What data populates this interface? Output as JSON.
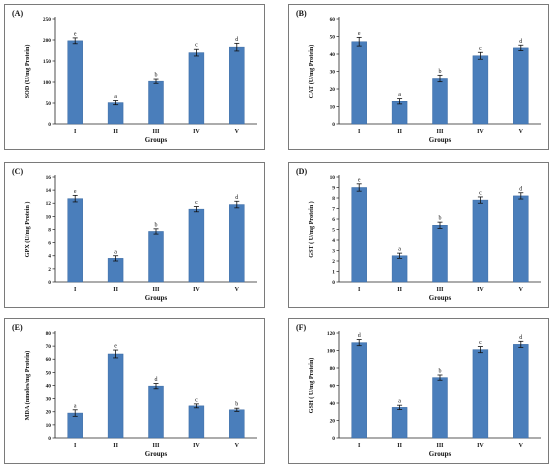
{
  "colors": {
    "bar": "#4a7ebb",
    "bar_edge": "#3a6aa3",
    "axis": "#222222",
    "frame": "#7a7a7a"
  },
  "chart_data": [
    {
      "type": "bar",
      "panel_label": "(A)",
      "categories": [
        "I",
        "II",
        "III",
        "IV",
        "V"
      ],
      "values": [
        198,
        51,
        102,
        170,
        183
      ],
      "errors": [
        7,
        5,
        5,
        8,
        9
      ],
      "letters": [
        "e",
        "a",
        "b",
        "c",
        "d"
      ],
      "xlabel": "Groups",
      "ylabel": "SOD (U/mg Protein)",
      "ylim": [
        0,
        250
      ],
      "yticks": [
        "0",
        "50",
        "100",
        "150",
        "200",
        "250"
      ]
    },
    {
      "type": "bar",
      "panel_label": "(B)",
      "categories": [
        "I",
        "II",
        "III",
        "IV",
        "V"
      ],
      "values": [
        47,
        13,
        26,
        39,
        43.5
      ],
      "errors": [
        2.5,
        1.5,
        1.8,
        2.0,
        1.5
      ],
      "letters": [
        "e",
        "a",
        "b",
        "c",
        "d"
      ],
      "xlabel": "Groups",
      "ylabel": "CAT (U/mg Protein)",
      "ylim": [
        0,
        60
      ],
      "yticks": [
        "0",
        "10",
        "20",
        "30",
        "40",
        "50",
        "60"
      ]
    },
    {
      "type": "bar",
      "panel_label": "(C)",
      "categories": [
        "I",
        "II",
        "III",
        "IV",
        "V"
      ],
      "values": [
        12.7,
        3.6,
        7.7,
        11.1,
        11.8
      ],
      "errors": [
        0.5,
        0.4,
        0.4,
        0.4,
        0.5
      ],
      "letters": [
        "e",
        "a",
        "b",
        "c",
        "d"
      ],
      "xlabel": "Groups",
      "ylabel": "GPX (U/mg Protein )",
      "ylim": [
        0,
        16
      ],
      "yticks": [
        "0",
        "2",
        "4",
        "6",
        "8",
        "10",
        "12",
        "14",
        "16"
      ]
    },
    {
      "type": "bar",
      "panel_label": "(D)",
      "categories": [
        "I",
        "II",
        "III",
        "IV",
        "V"
      ],
      "values": [
        9.0,
        2.5,
        5.4,
        7.8,
        8.2
      ],
      "errors": [
        0.35,
        0.25,
        0.3,
        0.3,
        0.3
      ],
      "letters": [
        "e",
        "a",
        "b",
        "c",
        "d"
      ],
      "xlabel": "Groups",
      "ylabel": "GST ( U/mg Protein )",
      "ylim": [
        0,
        10
      ],
      "yticks": [
        "0",
        "1",
        "2",
        "3",
        "4",
        "5",
        "6",
        "7",
        "8",
        "9",
        "10"
      ]
    },
    {
      "type": "bar",
      "panel_label": "(E)",
      "categories": [
        "I",
        "II",
        "III",
        "IV",
        "V"
      ],
      "values": [
        19,
        64,
        39.5,
        24.5,
        21.5
      ],
      "errors": [
        2.5,
        3.0,
        2.0,
        1.5,
        1.2
      ],
      "letters": [
        "a",
        "e",
        "d",
        "c",
        "b"
      ],
      "xlabel": "Groups",
      "ylabel": "MDA (nmoles/mg Protein)",
      "ylim": [
        0,
        80
      ],
      "yticks": [
        "0",
        "10",
        "20",
        "30",
        "40",
        "50",
        "60",
        "70",
        "80"
      ]
    },
    {
      "type": "bar",
      "panel_label": "(F)",
      "categories": [
        "I",
        "II",
        "III",
        "IV",
        "V"
      ],
      "values": [
        109,
        35,
        69,
        101,
        107
      ],
      "errors": [
        3.5,
        2.5,
        3.0,
        3.5,
        3.5
      ],
      "letters": [
        "d",
        "a",
        "b",
        "c",
        "d"
      ],
      "xlabel": "Groups",
      "ylabel": "GSH ( U/mg Protein)",
      "ylim": [
        0,
        120
      ],
      "yticks": [
        "0",
        "20",
        "40",
        "60",
        "80",
        "100",
        "120"
      ]
    }
  ]
}
